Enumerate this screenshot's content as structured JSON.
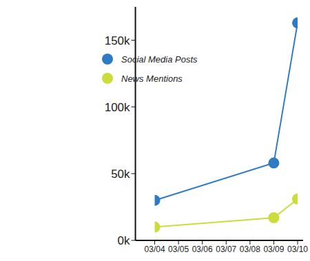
{
  "chart_data": {
    "type": "line",
    "x": [
      "03/04",
      "03/09",
      "03/10"
    ],
    "xlim": [
      "03/04",
      "03/10"
    ],
    "xticks": [
      "03/04",
      "03/05",
      "03/06",
      "03/07",
      "03/08",
      "03/09",
      "03/10"
    ],
    "series": [
      {
        "name": "Social Media Posts",
        "color": "#2f7bc3",
        "values": [
          30000,
          58000,
          163000
        ],
        "marker": "circle"
      },
      {
        "name": "News Mentions",
        "color": "#cbdc3b",
        "values": [
          10000,
          17000,
          31000
        ],
        "marker": "circle"
      }
    ],
    "ylim": [
      0,
      175000
    ],
    "yticks": [
      {
        "value": 0,
        "label": "0k"
      },
      {
        "value": 50000,
        "label": "50k"
      },
      {
        "value": 100000,
        "label": "100k"
      },
      {
        "value": 150000,
        "label": "150k"
      }
    ],
    "legend": "upper left",
    "grid": false
  }
}
